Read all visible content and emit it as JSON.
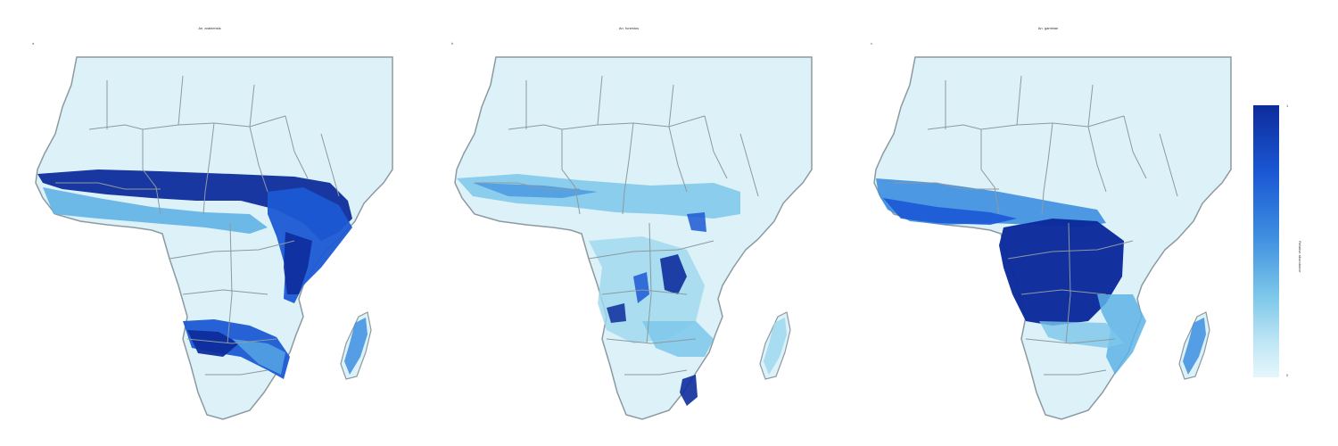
{
  "panels": [
    {
      "letter": "a",
      "title": "An. arabiensis"
    },
    {
      "letter": "b",
      "title": "An. funestus"
    },
    {
      "letter": "c",
      "title": "An. gambiae"
    }
  ],
  "legend": {
    "label": "Relative abundance",
    "max_label": "1",
    "min_label": "0",
    "colors": [
      "#0d2c9c",
      "#1b58d4",
      "#3d8ee0",
      "#7cc7ea",
      "#c2e7f5",
      "#e5f6fc"
    ]
  },
  "colors": {
    "land": "#dcf1f8",
    "border": "#8c9aa0",
    "water": "#ffffff",
    "high_abundance": "#0d2c9c",
    "mid_abundance": "#3d8ee0",
    "low_abundance": "#9fd8ef"
  },
  "region": "Africa"
}
